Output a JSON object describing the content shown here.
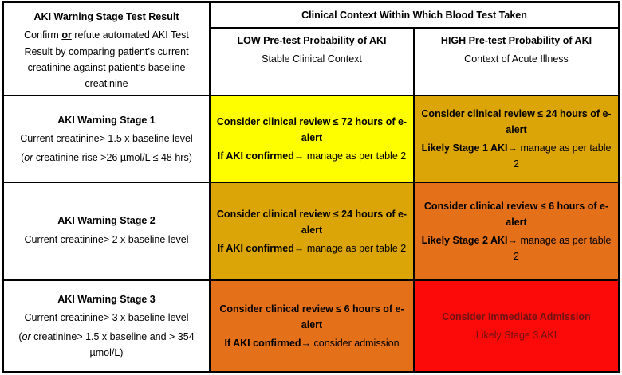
{
  "palette": {
    "yellow": "#FEFE00",
    "amber": "#DBA507",
    "orange": "#E4701A",
    "red": "#FC0A0A",
    "red_cell_text": "#6E1212",
    "border": "#000000"
  },
  "header": {
    "left": {
      "title": "AKI Warning Stage Test Result",
      "body_pre": "Confirm ",
      "body_or": "or",
      "body_post": " refute automated AKI Test Result by comparing patient’s current creatinine against patient’s baseline creatinine"
    },
    "context_title": "Clinical Context Within Which Blood Test Taken",
    "low": {
      "title": "LOW Pre-test Probability of AKI",
      "subtitle": "Stable Clinical Context"
    },
    "high": {
      "title": "HIGH Pre-test Probability of AKI",
      "subtitle": "Context of Acute Illness"
    }
  },
  "rows": [
    {
      "stage": {
        "title": "AKI Warning Stage 1",
        "line1": "Current creatinine> 1.5 x baseline level",
        "line2_pre": "(",
        "line2_or": "or",
        "line2_post": " creatinine rise >26 µmol/L ≤ 48 hrs)"
      },
      "low": {
        "p1": "Consider clinical review ≤ 72 hours of e-alert",
        "p2_bold": "If AKI confirmed",
        "p2_rest": "→ manage as per table 2",
        "bg": "#FEFE00"
      },
      "high": {
        "p1": "Consider clinical review ≤ 24 hours of e-alert",
        "p2_bold": "Likely Stage 1 AKI",
        "p2_rest": "→ manage as per table 2",
        "bg": "#DBA507"
      }
    },
    {
      "stage": {
        "title": "AKI Warning Stage 2",
        "line1": "Current creatinine> 2 x baseline level",
        "line2_pre": "",
        "line2_or": "",
        "line2_post": ""
      },
      "low": {
        "p1": "Consider clinical review ≤ 24 hours of e-alert",
        "p2_bold": "If AKI confirmed",
        "p2_rest": "→ manage as per table 2",
        "bg": "#DBA507"
      },
      "high": {
        "p1": "Consider clinical review ≤ 6 hours of e-alert",
        "p2_bold": "Likely Stage 2 AKI",
        "p2_rest": "→ manage as per table 2",
        "bg": "#E4701A"
      }
    },
    {
      "stage": {
        "title": "AKI Warning Stage 3",
        "line1": "Current creatinine> 3 x baseline level",
        "line2_pre": "(",
        "line2_or": "or",
        "line2_post": " creatinine> 1.5 x baseline and > 354 µmol/L)"
      },
      "low": {
        "p1": "Consider clinical review ≤ 6 hours of e-alert",
        "p2_bold": "If AKI confirmed",
        "p2_rest": "→ consider admission",
        "bg": "#E4701A"
      },
      "high": {
        "p1": "Consider Immediate Admission",
        "p2_bold": "",
        "p2_rest": "Likely Stage 3 AKI",
        "bg": "#FC0A0A",
        "fg": "#6E1212"
      }
    }
  ]
}
